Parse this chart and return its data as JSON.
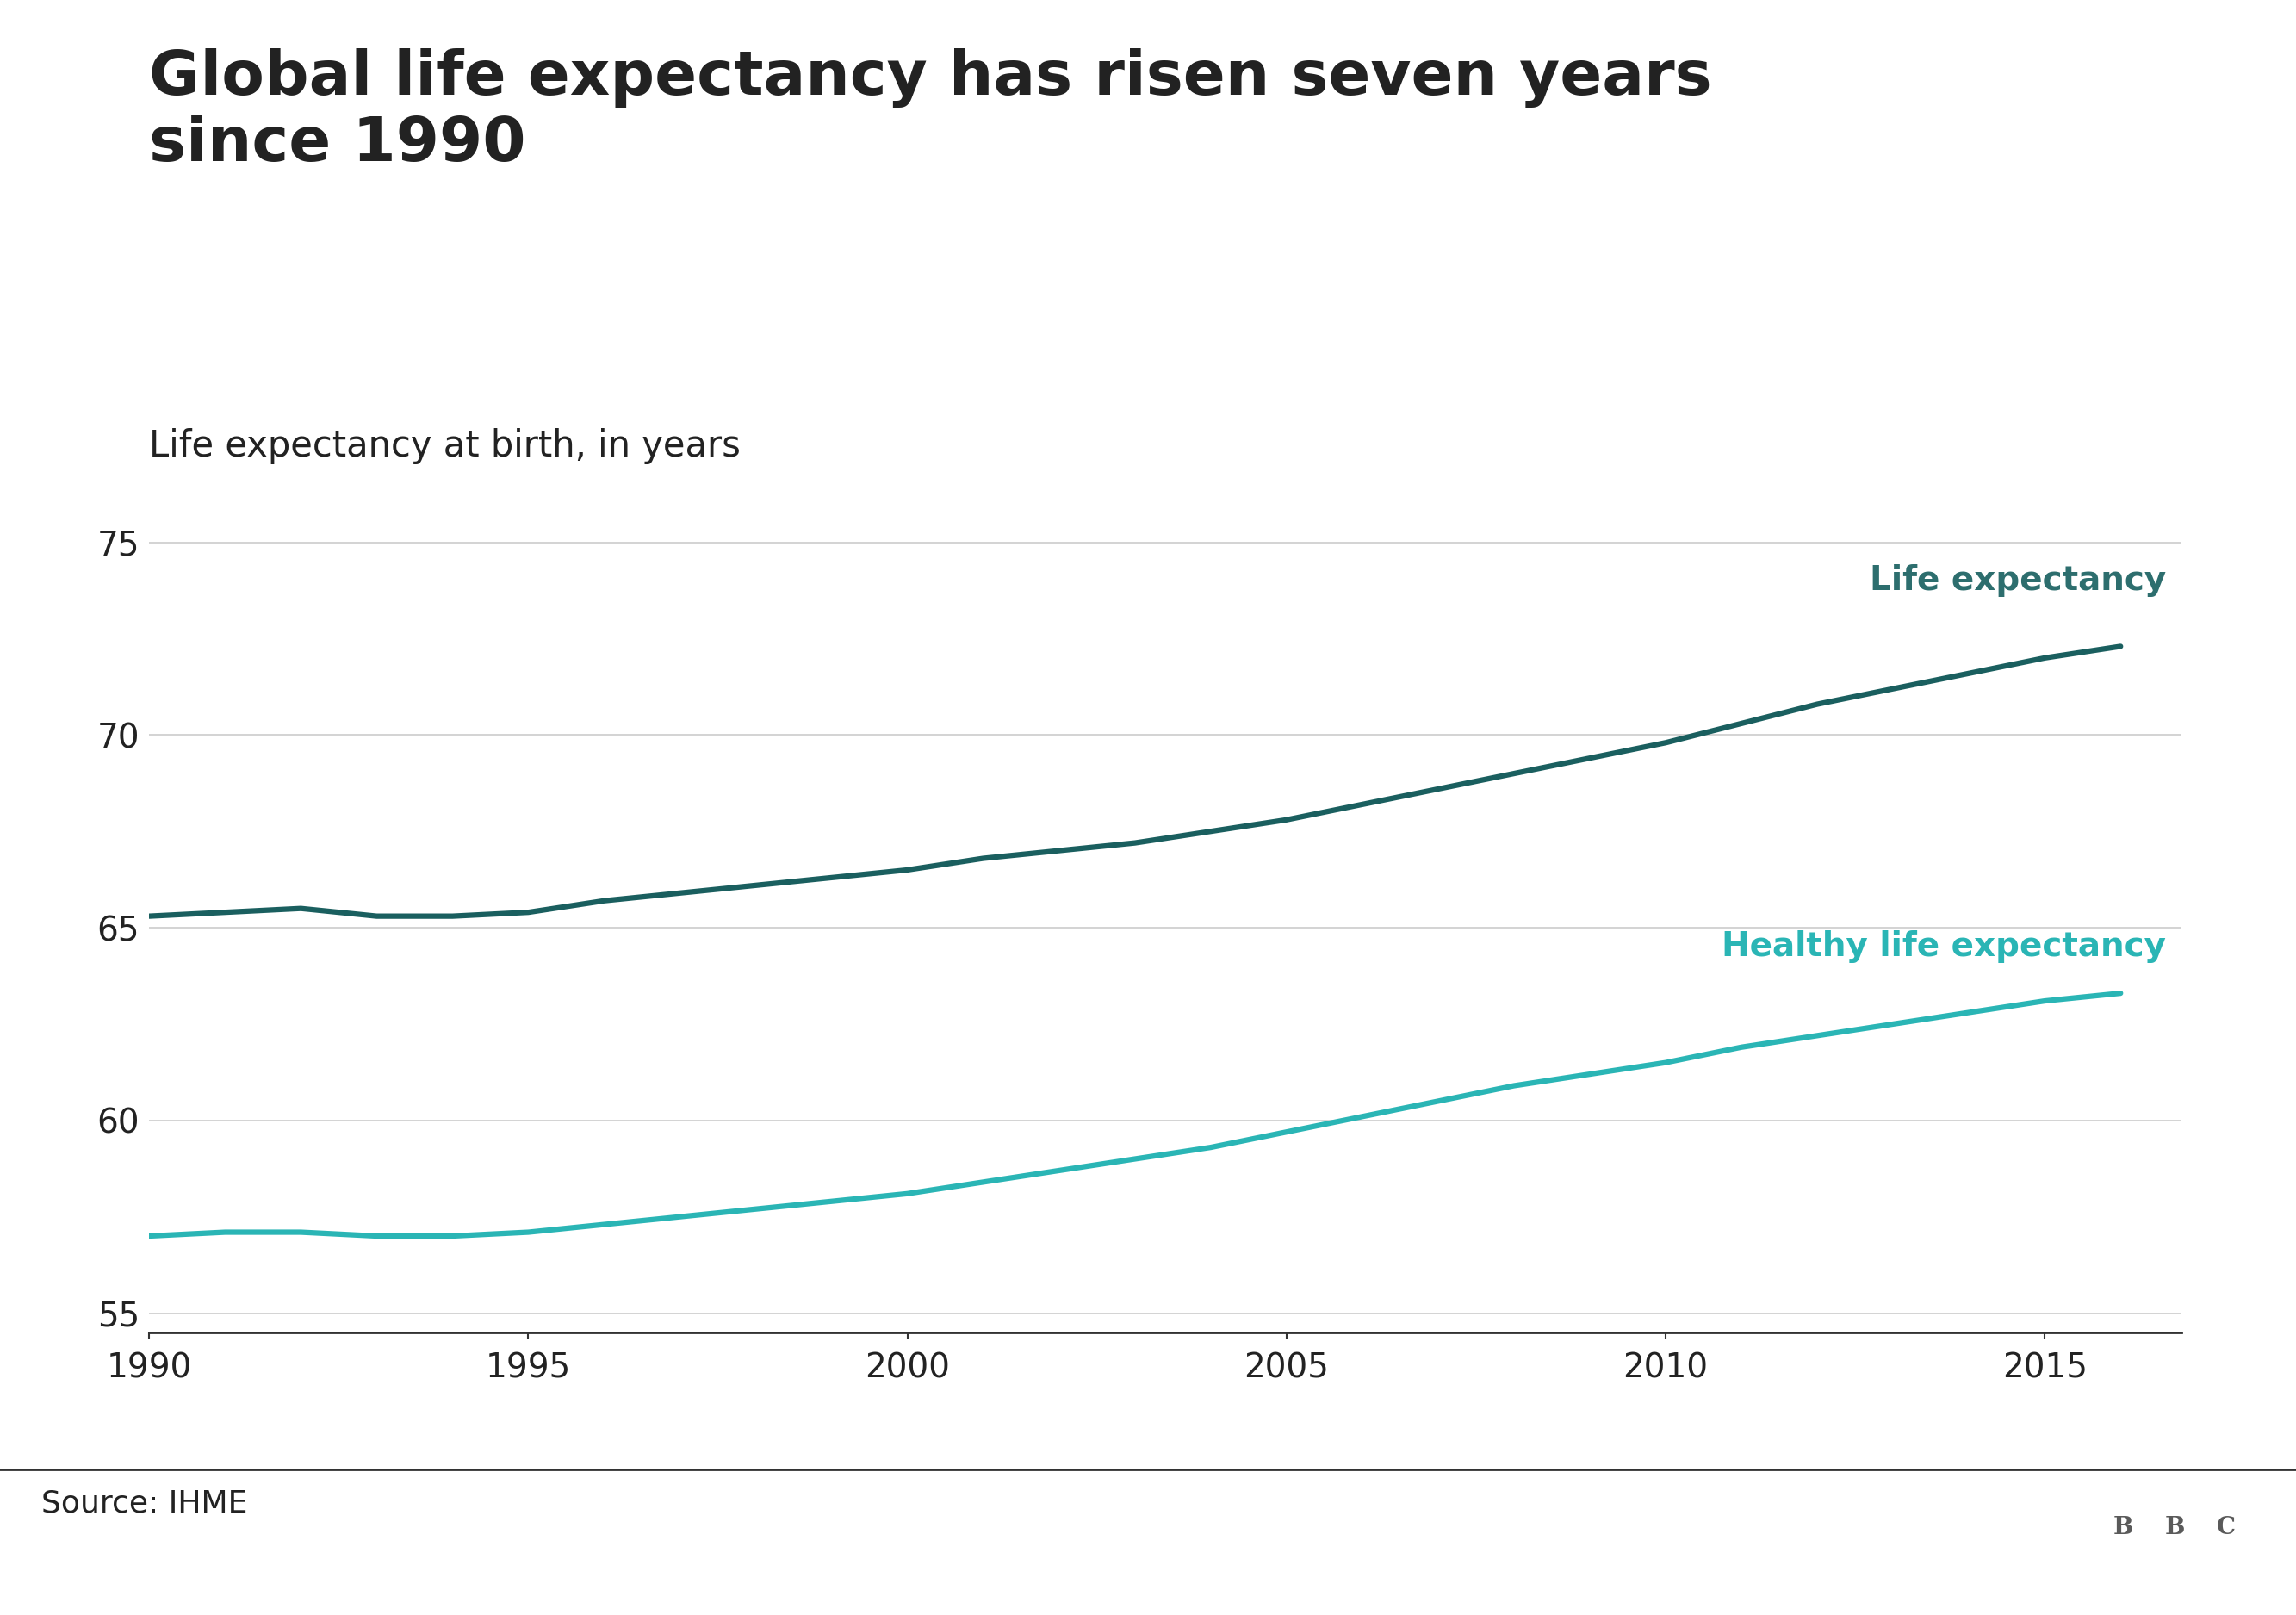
{
  "title": "Global life expectancy has risen seven years\nsince 1990",
  "subtitle": "Life expectancy at birth, in years",
  "source": "Source: IHME",
  "bbc_text": "BBC",
  "life_expectancy_years": [
    1990,
    1991,
    1992,
    1993,
    1994,
    1995,
    1996,
    1997,
    1998,
    1999,
    2000,
    2001,
    2002,
    2003,
    2004,
    2005,
    2006,
    2007,
    2008,
    2009,
    2010,
    2011,
    2012,
    2013,
    2014,
    2015,
    2016
  ],
  "life_expectancy_values": [
    65.3,
    65.4,
    65.5,
    65.3,
    65.3,
    65.4,
    65.7,
    65.9,
    66.1,
    66.3,
    66.5,
    66.8,
    67.0,
    67.2,
    67.5,
    67.8,
    68.2,
    68.6,
    69.0,
    69.4,
    69.8,
    70.3,
    70.8,
    71.2,
    71.6,
    72.0,
    72.3
  ],
  "healthy_le_years": [
    1990,
    1991,
    1992,
    1993,
    1994,
    1995,
    1996,
    1997,
    1998,
    1999,
    2000,
    2001,
    2002,
    2003,
    2004,
    2005,
    2006,
    2007,
    2008,
    2009,
    2010,
    2011,
    2012,
    2013,
    2014,
    2015,
    2016
  ],
  "healthy_le_values": [
    57.0,
    57.1,
    57.1,
    57.0,
    57.0,
    57.1,
    57.3,
    57.5,
    57.7,
    57.9,
    58.1,
    58.4,
    58.7,
    59.0,
    59.3,
    59.7,
    60.1,
    60.5,
    60.9,
    61.2,
    61.5,
    61.9,
    62.2,
    62.5,
    62.8,
    63.1,
    63.3
  ],
  "life_expectancy_color": "#1a5f5f",
  "healthy_le_color": "#2ab5b5",
  "life_expectancy_label": "Life expectancy",
  "healthy_le_label": "Healthy life expectancy",
  "xlim": [
    1990,
    2016.8
  ],
  "ylim": [
    54.5,
    76.5
  ],
  "yticks": [
    55,
    60,
    65,
    70,
    75
  ],
  "xticks": [
    1990,
    1995,
    2000,
    2005,
    2010,
    2015
  ],
  "background_color": "#ffffff",
  "title_fontsize": 52,
  "subtitle_fontsize": 30,
  "tick_fontsize": 28,
  "label_fontsize": 28,
  "source_fontsize": 26,
  "line_width": 4.5,
  "grid_color": "#cccccc",
  "axis_color": "#333333",
  "footer_line_color": "#333333",
  "text_color": "#222222",
  "label_color_le": "#2d6e6e",
  "label_color_hle": "#2ab5b5"
}
